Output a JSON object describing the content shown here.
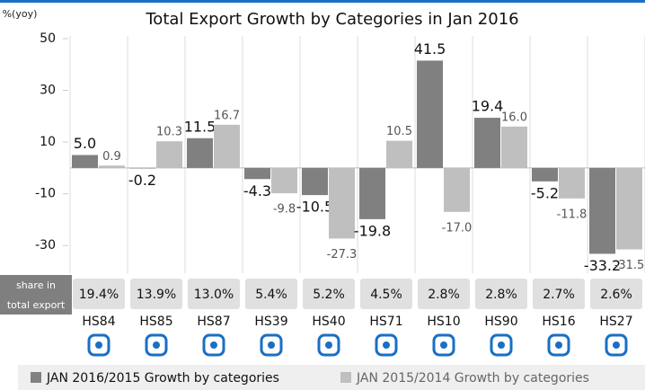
{
  "chart_data": {
    "type": "bar",
    "title": "Total Export Growth by Categories in Jan 2016",
    "y_axis_label": "%(yoy)",
    "categories": [
      "HS84",
      "HS85",
      "HS87",
      "HS39",
      "HS40",
      "HS71",
      "HS10",
      "HS90",
      "HS16",
      "HS27"
    ],
    "series": [
      {
        "name": "JAN 2016/2015 Growth by categories",
        "color": "#808080",
        "values": [
          5.0,
          -0.2,
          11.5,
          -4.3,
          -10.5,
          -19.8,
          41.5,
          19.4,
          -5.2,
          -33.2
        ],
        "value_labels": [
          "5.0",
          "-0.2",
          "11.5",
          "-4.3",
          "-10.5",
          "-19.8",
          "41.5",
          "19.4",
          "-5.2",
          "-33.2"
        ]
      },
      {
        "name": "JAN 2015/2014 Growth by categories",
        "color": "#bfbfbf",
        "values": [
          0.9,
          10.3,
          16.7,
          -9.8,
          -27.3,
          10.5,
          -17.0,
          16.0,
          -11.8,
          -31.5
        ],
        "value_labels": [
          "0.9",
          "10.3",
          "16.7",
          "-9.8",
          "-27.3",
          "10.5",
          "-17.0",
          "16.0",
          "-11.8",
          "-31.5"
        ]
      }
    ],
    "ylim": [
      -40,
      50
    ],
    "yticks": [
      -30,
      -10,
      10,
      30,
      50
    ],
    "share_label": [
      "share in",
      "total export"
    ],
    "share_values": [
      "19.4%",
      "13.9%",
      "13.0%",
      "5.4%",
      "5.2%",
      "4.5%",
      "2.8%",
      "2.8%",
      "2.7%",
      "2.6%"
    ]
  }
}
